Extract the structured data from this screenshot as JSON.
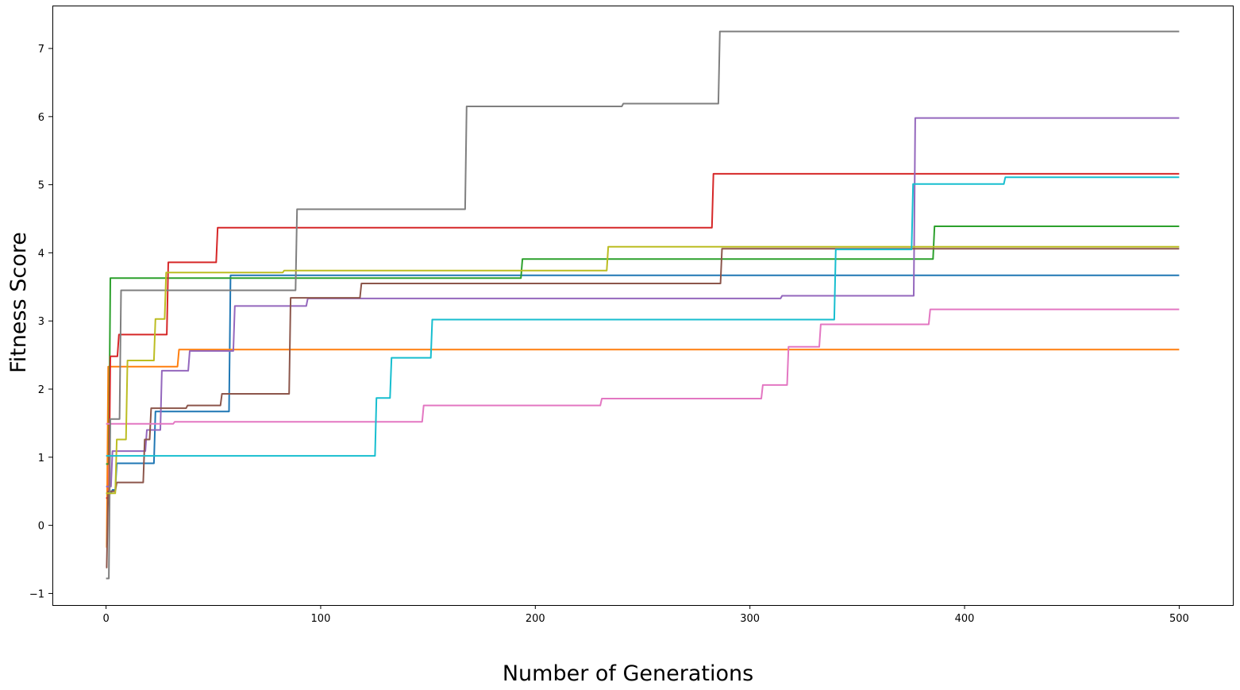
{
  "chart_data": {
    "type": "line",
    "title": "",
    "xlabel": "Number of Generations",
    "ylabel": "Fitness Score",
    "xlim": [
      -25,
      525
    ],
    "ylim": [
      -1.17,
      7.63
    ],
    "xticks": [
      0,
      100,
      200,
      300,
      400,
      500
    ],
    "yticks": [
      -1,
      0,
      1,
      2,
      3,
      4,
      5,
      6,
      7
    ],
    "grid": false,
    "legend": "none",
    "series": [
      {
        "color": "#1f77b4",
        "step_points": [
          [
            0,
            0.47
          ],
          [
            3,
            0.52
          ],
          [
            5,
            0.91
          ],
          [
            23,
            1.67
          ],
          [
            58,
            3.67
          ],
          [
            500,
            3.67
          ]
        ]
      },
      {
        "color": "#ff7f0e",
        "step_points": [
          [
            0,
            -0.32
          ],
          [
            1,
            2.33
          ],
          [
            34,
            2.58
          ],
          [
            500,
            2.58
          ]
        ]
      },
      {
        "color": "#2ca02c",
        "step_points": [
          [
            0,
            0.9
          ],
          [
            2,
            3.63
          ],
          [
            194,
            3.91
          ],
          [
            386,
            4.39
          ],
          [
            500,
            4.39
          ]
        ]
      },
      {
        "color": "#d62728",
        "step_points": [
          [
            0,
            0.4
          ],
          [
            2,
            2.48
          ],
          [
            6,
            2.8
          ],
          [
            29,
            3.86
          ],
          [
            52,
            4.37
          ],
          [
            283,
            5.16
          ],
          [
            500,
            5.16
          ]
        ]
      },
      {
        "color": "#9467bd",
        "step_points": [
          [
            0,
            0.57
          ],
          [
            3,
            1.09
          ],
          [
            19,
            1.4
          ],
          [
            26,
            2.27
          ],
          [
            39,
            2.56
          ],
          [
            60,
            3.22
          ],
          [
            94,
            3.33
          ],
          [
            315,
            3.37
          ],
          [
            377,
            5.98
          ],
          [
            500,
            5.98
          ]
        ]
      },
      {
        "color": "#8c564b",
        "step_points": [
          [
            0,
            -0.62
          ],
          [
            1,
            0.5
          ],
          [
            5,
            0.63
          ],
          [
            18,
            1.26
          ],
          [
            21,
            1.72
          ],
          [
            38,
            1.76
          ],
          [
            54,
            1.93
          ],
          [
            86,
            3.34
          ],
          [
            119,
            3.55
          ],
          [
            287,
            4.06
          ],
          [
            500,
            4.06
          ]
        ]
      },
      {
        "color": "#e377c2",
        "step_points": [
          [
            0,
            1.49
          ],
          [
            32,
            1.52
          ],
          [
            148,
            1.76
          ],
          [
            231,
            1.86
          ],
          [
            306,
            2.06
          ],
          [
            318,
            2.62
          ],
          [
            333,
            2.95
          ],
          [
            384,
            3.17
          ],
          [
            500,
            3.17
          ]
        ]
      },
      {
        "color": "#7f7f7f",
        "step_points": [
          [
            0,
            -0.78
          ],
          [
            2,
            1.56
          ],
          [
            7,
            3.45
          ],
          [
            89,
            4.64
          ],
          [
            168,
            6.15
          ],
          [
            241,
            6.19
          ],
          [
            286,
            7.25
          ],
          [
            500,
            7.25
          ]
        ]
      },
      {
        "color": "#bcbd22",
        "step_points": [
          [
            0,
            0.47
          ],
          [
            5,
            1.26
          ],
          [
            10,
            2.42
          ],
          [
            23,
            3.03
          ],
          [
            28,
            3.71
          ],
          [
            83,
            3.74
          ],
          [
            234,
            4.09
          ],
          [
            500,
            4.09
          ]
        ]
      },
      {
        "color": "#17becf",
        "step_points": [
          [
            0,
            1.02
          ],
          [
            126,
            1.87
          ],
          [
            133,
            2.46
          ],
          [
            152,
            3.02
          ],
          [
            340,
            4.05
          ],
          [
            376,
            5.01
          ],
          [
            419,
            5.11
          ],
          [
            500,
            5.11
          ]
        ]
      }
    ]
  }
}
